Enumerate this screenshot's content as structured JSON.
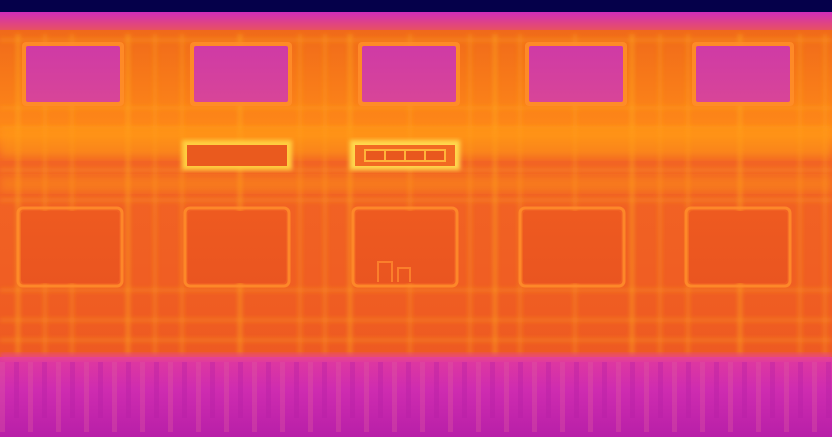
{
  "image": {
    "kind": "thermal-infrared-photo",
    "subject": "building facade"
  },
  "palette": {
    "top_sky": "#05004a",
    "roof_band": "#c42ab8",
    "wall_hot": "#ff7a10",
    "wall_mid": "#f25a1f",
    "wall_cool": "#ee5225",
    "grid_line": "#ffb020",
    "window_glass": "#c93ba8",
    "window_frame": "#ff8e2a",
    "door_panel": "#e65414",
    "hot_strip": "#ffd24a",
    "ground": "#d22cb8",
    "ground_dark": "#b51fa6"
  },
  "icons": {
    "upper_windows": "window-icon",
    "lower_panels": "panel-icon",
    "vents": "vent-icon"
  }
}
